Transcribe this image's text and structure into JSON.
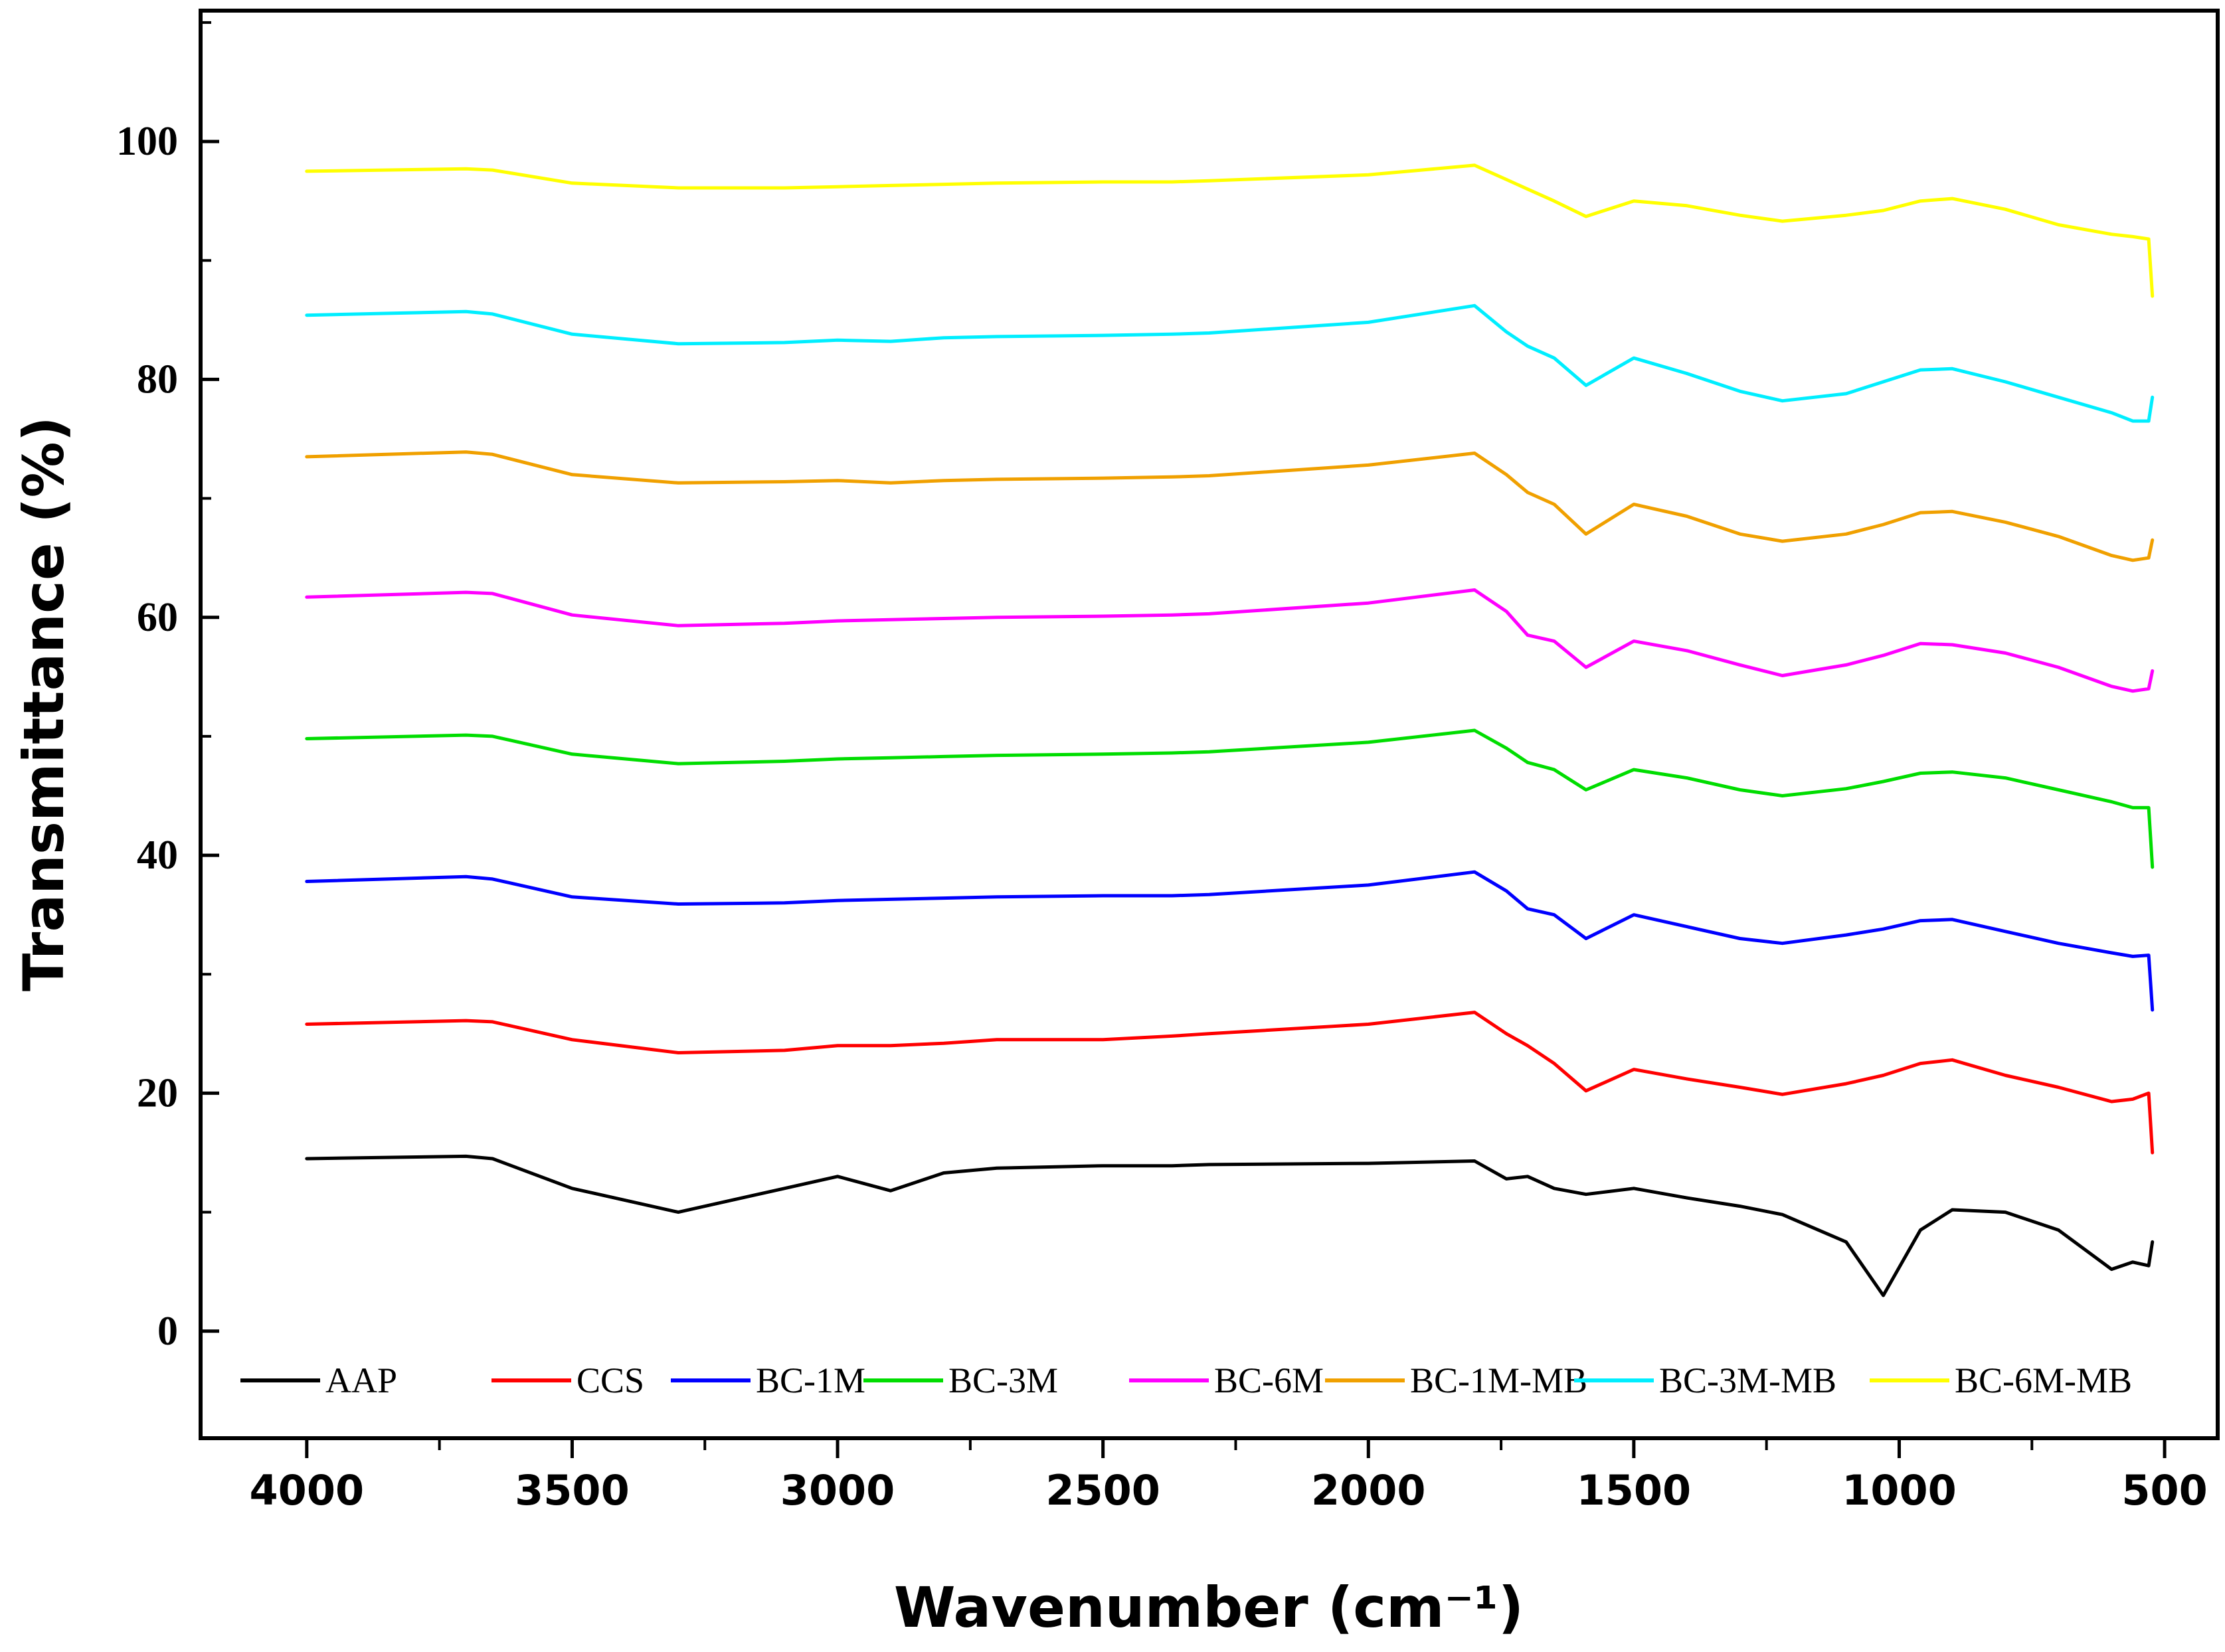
{
  "chart_data": {
    "type": "line",
    "title": "",
    "xlabel": "Wavenumber (cm⁻¹)",
    "ylabel": "Transmittance (%)",
    "xlim": [
      4200,
      400
    ],
    "ylim": [
      -9,
      111
    ],
    "x_ticks": [
      {
        "value": 4000,
        "label": "4000"
      },
      {
        "value": 3500,
        "label": "3500"
      },
      {
        "value": 3000,
        "label": "3000"
      },
      {
        "value": 2500,
        "label": "2500"
      },
      {
        "value": 2000,
        "label": "2000"
      },
      {
        "value": 1500,
        "label": "1500"
      },
      {
        "value": 1000,
        "label": "1000"
      },
      {
        "value": 500,
        "label": "500"
      }
    ],
    "y_ticks": [
      {
        "value": 0,
        "label": "0"
      },
      {
        "value": 20,
        "label": "20"
      },
      {
        "value": 40,
        "label": "40"
      },
      {
        "value": 60,
        "label": "60"
      },
      {
        "value": 80,
        "label": "80"
      },
      {
        "value": 100,
        "label": "100"
      }
    ],
    "legend_position": "bottom",
    "x": [
      4000,
      3700,
      3650,
      3500,
      3300,
      3100,
      3000,
      2900,
      2800,
      2700,
      2500,
      2370,
      2300,
      2000,
      1800,
      1740,
      1700,
      1650,
      1590,
      1500,
      1400,
      1300,
      1220,
      1100,
      1030,
      960,
      900,
      800,
      700,
      600,
      560,
      530,
      523
    ],
    "series": [
      {
        "name": "AAP",
        "color": "#000000",
        "values": [
          14.5,
          14.7,
          14.5,
          12.0,
          10.0,
          12.0,
          13.0,
          11.8,
          13.3,
          13.7,
          13.9,
          13.9,
          14.0,
          14.1,
          14.3,
          12.8,
          13.0,
          12.0,
          11.5,
          12.0,
          11.2,
          10.5,
          9.8,
          7.5,
          3.0,
          8.5,
          10.2,
          10.0,
          8.5,
          5.2,
          5.8,
          5.5,
          7.5
        ]
      },
      {
        "name": "CCS",
        "color": "#ff0000",
        "values": [
          25.8,
          26.1,
          26.0,
          24.5,
          23.4,
          23.6,
          24.0,
          24.0,
          24.2,
          24.5,
          24.5,
          24.8,
          25.0,
          25.8,
          26.8,
          25.0,
          24.0,
          22.5,
          20.2,
          22.0,
          21.2,
          20.5,
          19.9,
          20.8,
          21.5,
          22.5,
          22.8,
          21.5,
          20.5,
          19.3,
          19.5,
          20.0,
          15.0
        ]
      },
      {
        "name": "BC-1M",
        "color": "#0000ff",
        "values": [
          37.8,
          38.2,
          38.0,
          36.5,
          35.9,
          36.0,
          36.2,
          36.3,
          36.4,
          36.5,
          36.6,
          36.6,
          36.7,
          37.5,
          38.6,
          37.0,
          35.5,
          35.0,
          33.0,
          35.0,
          34.0,
          33.0,
          32.6,
          33.3,
          33.8,
          34.5,
          34.6,
          33.6,
          32.6,
          31.8,
          31.5,
          31.6,
          27.0
        ]
      },
      {
        "name": "BC-3M",
        "color": "#00dd00",
        "values": [
          49.8,
          50.1,
          50.0,
          48.5,
          47.7,
          47.9,
          48.1,
          48.2,
          48.3,
          48.4,
          48.5,
          48.6,
          48.7,
          49.5,
          50.5,
          49.0,
          47.8,
          47.2,
          45.5,
          47.2,
          46.5,
          45.5,
          45.0,
          45.6,
          46.2,
          46.9,
          47.0,
          46.5,
          45.5,
          44.5,
          44.0,
          44.0,
          39.0
        ]
      },
      {
        "name": "BC-6M",
        "color": "#ff00ff",
        "values": [
          61.7,
          62.1,
          62.0,
          60.2,
          59.3,
          59.5,
          59.7,
          59.8,
          59.9,
          60.0,
          60.1,
          60.2,
          60.3,
          61.2,
          62.3,
          60.5,
          58.5,
          58.0,
          55.8,
          58.0,
          57.2,
          56.0,
          55.1,
          56.0,
          56.8,
          57.8,
          57.7,
          57.0,
          55.8,
          54.2,
          53.8,
          54.0,
          55.5
        ]
      },
      {
        "name": "BC-1M-MB",
        "color": "#f0a000",
        "values": [
          73.5,
          73.9,
          73.7,
          72.0,
          71.3,
          71.4,
          71.5,
          71.3,
          71.5,
          71.6,
          71.7,
          71.8,
          71.9,
          72.8,
          73.8,
          72.0,
          70.5,
          69.5,
          67.0,
          69.5,
          68.5,
          67.0,
          66.4,
          67.0,
          67.8,
          68.8,
          68.9,
          68.0,
          66.8,
          65.2,
          64.8,
          65.0,
          66.5
        ]
      },
      {
        "name": "BC-3M-MB",
        "color": "#00eeff",
        "values": [
          85.4,
          85.7,
          85.5,
          83.8,
          83.0,
          83.1,
          83.3,
          83.2,
          83.5,
          83.6,
          83.7,
          83.8,
          83.9,
          84.8,
          86.2,
          84.0,
          82.8,
          81.8,
          79.5,
          81.8,
          80.5,
          79.0,
          78.2,
          78.8,
          79.8,
          80.8,
          80.9,
          79.8,
          78.5,
          77.2,
          76.5,
          76.5,
          78.5
        ]
      },
      {
        "name": "BC-6M-MB",
        "color": "#ffff00",
        "values": [
          97.5,
          97.7,
          97.6,
          96.5,
          96.1,
          96.1,
          96.2,
          96.3,
          96.4,
          96.5,
          96.6,
          96.6,
          96.7,
          97.2,
          98.0,
          96.8,
          96.0,
          95.0,
          93.7,
          95.0,
          94.6,
          93.8,
          93.3,
          93.8,
          94.2,
          95.0,
          95.2,
          94.3,
          93.0,
          92.2,
          92.0,
          91.8,
          87.0
        ]
      }
    ]
  }
}
